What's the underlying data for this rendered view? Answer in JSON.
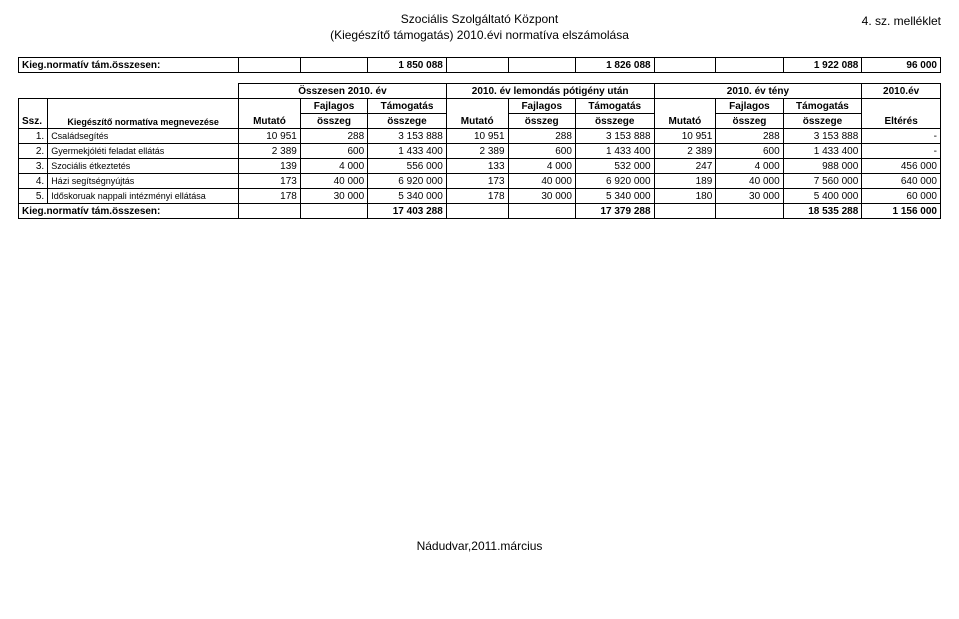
{
  "header": {
    "line1": "Szociális Szolgáltató Központ",
    "line2": "(Kiegészítő támogatás) 2010.évi normatíva elszámolása",
    "right": "4. sz. melléklet"
  },
  "table1": {
    "label": "Kieg.normatív tám.összesen:",
    "v1": "1 850 088",
    "v2": "1 826 088",
    "v3": "1 922 088",
    "v4": "96 000"
  },
  "group_headers": {
    "g1": "Összesen 2010. év",
    "g2": "2010. év lemondás pótigény után",
    "g3": "2010. év tény",
    "g4": "2010.év"
  },
  "col_headers": {
    "ssz": "Ssz.",
    "name": "Kiegészítő normatíva megnevezése",
    "mutato": "Mutató",
    "fajlagos1": "Fajlagos",
    "fajlagos2": "összeg",
    "tamogatas1": "Támogatás",
    "tamogatas2": "összege",
    "elteres": "Eltérés"
  },
  "rows": [
    {
      "n": "1.",
      "name": "Családsegítés",
      "m1": "10 951",
      "f1": "288",
      "t1": "3 153 888",
      "m2": "10 951",
      "f2": "288",
      "t2": "3 153 888",
      "m3": "10 951",
      "f3": "288",
      "t3": "3 153 888",
      "e": "-"
    },
    {
      "n": "2.",
      "name": "Gyermekjóléti feladat ellátás",
      "m1": "2 389",
      "f1": "600",
      "t1": "1 433 400",
      "m2": "2 389",
      "f2": "600",
      "t2": "1 433 400",
      "m3": "2 389",
      "f3": "600",
      "t3": "1 433 400",
      "e": "-"
    },
    {
      "n": "3.",
      "name": "Szociális étkeztetés",
      "m1": "139",
      "f1": "4 000",
      "t1": "556 000",
      "m2": "133",
      "f2": "4 000",
      "t2": "532 000",
      "m3": "247",
      "f3": "4 000",
      "t3": "988 000",
      "e": "456 000"
    },
    {
      "n": "4.",
      "name": "Házi segítségnyújtás",
      "m1": "173",
      "f1": "40 000",
      "t1": "6 920 000",
      "m2": "173",
      "f2": "40 000",
      "t2": "6 920 000",
      "m3": "189",
      "f3": "40 000",
      "t3": "7 560 000",
      "e": "640 000"
    },
    {
      "n": "5.",
      "name": "Időskoruak nappali intézményi ellátása",
      "m1": "178",
      "f1": "30 000",
      "t1": "5 340 000",
      "m2": "178",
      "f2": "30 000",
      "t2": "5 340 000",
      "m3": "180",
      "f3": "30 000",
      "t3": "5 400 000",
      "e": "60 000"
    }
  ],
  "totals": {
    "label": "Kieg.normatív tám.összesen:",
    "t1": "17 403 288",
    "t2": "17 379 288",
    "t3": "18 535 288",
    "e": "1 156 000"
  },
  "footer": "Nádudvar,2011.március"
}
